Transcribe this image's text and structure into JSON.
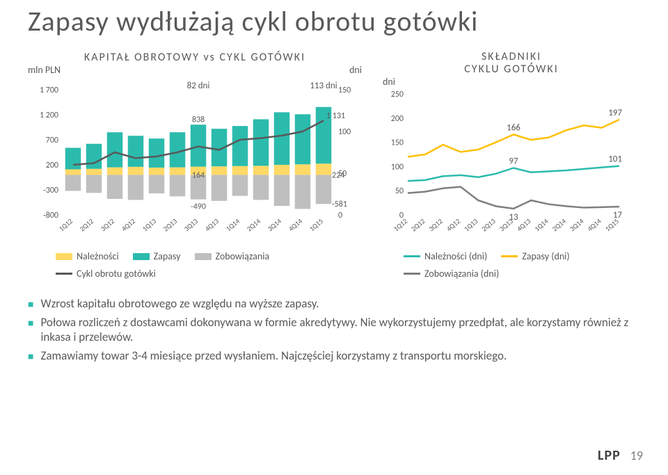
{
  "title": "Zapasy wydłużają cykl obrotu gotówki",
  "left_chart": {
    "title": "KAPITAŁ OBROTOWY vs CYKL GOTÓWKI",
    "left_unit": "mln PLN",
    "right_unit": "dni",
    "callout_mid_days": "82 dni",
    "callout_end_days": "113 dni",
    "callout_zapasy_mid": "838",
    "callout_zapasy_end": "1 131",
    "callout_nal_mid": "164",
    "callout_nal_end": "224",
    "callout_zob_mid": "-490",
    "callout_zob_end": "-581",
    "categories": [
      "1Q12",
      "2Q12",
      "3Q12",
      "4Q12",
      "1Q13",
      "2Q13",
      "3Q13",
      "4Q13",
      "1Q14",
      "2Q14",
      "3Q14",
      "4Q14",
      "1Q15"
    ],
    "left_axis_ticks": [
      "1 700",
      "1 200",
      "700",
      "200",
      "-300",
      "-800"
    ],
    "right_axis_ticks": [
      "150",
      "100",
      "50",
      "0"
    ],
    "left_min": -800,
    "left_max": 1700,
    "right_min": 0,
    "right_max": 150,
    "zapasy": [
      430,
      500,
      700,
      620,
      580,
      700,
      838,
      750,
      800,
      930,
      1050,
      1000,
      1131
    ],
    "naleznosci": [
      110,
      120,
      150,
      160,
      145,
      150,
      164,
      170,
      175,
      180,
      200,
      210,
      224
    ],
    "zobowiazania": [
      -320,
      -360,
      -480,
      -500,
      -370,
      -430,
      -490,
      -520,
      -420,
      -500,
      -620,
      -680,
      -581
    ],
    "cykl_dni": [
      60,
      62,
      75,
      68,
      70,
      75,
      82,
      78,
      90,
      92,
      95,
      100,
      113
    ],
    "colors": {
      "zapasy": "#2bbbad",
      "naleznosci": "#ffd966",
      "zobowiazania": "#bfbfbf",
      "cykl": "#595959"
    },
    "legend": {
      "naleznosci": "Należności",
      "zapasy": "Zapasy",
      "zobowiazania": "Zobowiązania",
      "cykl": "Cykl obrotu gotówki"
    }
  },
  "right_chart": {
    "title_line1": "SKŁADNIKI",
    "title_line2": "CYKLU GOTÓWKI",
    "left_unit": "dni",
    "categories": [
      "1Q12",
      "2Q12",
      "3Q12",
      "4Q12",
      "1Q13",
      "2Q13",
      "3Q13",
      "4Q13",
      "1Q14",
      "2Q14",
      "3Q14",
      "4Q14",
      "1Q15"
    ],
    "y_ticks": [
      0,
      50,
      100,
      150,
      200,
      250
    ],
    "y_min": 0,
    "y_max": 250,
    "zapasy_dni": [
      120,
      125,
      145,
      130,
      135,
      150,
      166,
      155,
      160,
      175,
      185,
      180,
      197
    ],
    "naleznosci_dni": [
      70,
      72,
      80,
      82,
      78,
      85,
      97,
      88,
      90,
      92,
      95,
      98,
      101
    ],
    "zobowiazania_dni": [
      45,
      48,
      55,
      58,
      30,
      18,
      13,
      30,
      22,
      18,
      15,
      16,
      17
    ],
    "labels": {
      "z_mid": "166",
      "z_end": "197",
      "n_mid": "97",
      "n_end": "101",
      "o_mid": "13",
      "o_end": "17"
    },
    "colors": {
      "naleznosci": "#2bbbad",
      "zapasy": "#ffc000",
      "zobowiazania": "#7f7f7f"
    },
    "legend": {
      "naleznosci": "Należności (dni)",
      "zapasy": "Zapasy (dni)",
      "zobowiazania": "Zobowiązania (dni)"
    }
  },
  "bullets": [
    "Wzrost kapitału obrotowego ze względu na wyższe zapasy.",
    "Połowa rozliczeń z dostawcami dokonywana w formie akredytywy. Nie wykorzystujemy przedpłat, ale korzystamy również z inkasa i przelewów.",
    "Zamawiamy towar 3-4 miesiące przed wysłaniem. Najczęściej korzystamy z transportu morskiego."
  ],
  "footer": {
    "logo": "LPP",
    "page": "19"
  }
}
